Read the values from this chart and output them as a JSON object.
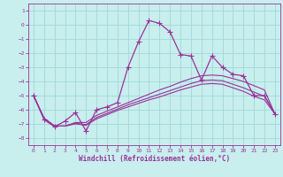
{
  "title": "",
  "xlabel": "Windchill (Refroidissement éolien,°C)",
  "background_color": "#c8eeee",
  "grid_color": "#a0d8d8",
  "line_color": "#993399",
  "xlim": [
    -0.5,
    23.5
  ],
  "ylim": [
    -8.5,
    1.5
  ],
  "xticks": [
    0,
    1,
    2,
    3,
    4,
    5,
    6,
    7,
    8,
    9,
    10,
    11,
    12,
    13,
    14,
    15,
    16,
    17,
    18,
    19,
    20,
    21,
    22,
    23
  ],
  "yticks": [
    -8,
    -7,
    -6,
    -5,
    -4,
    -3,
    -2,
    -1,
    0,
    1
  ],
  "series": [
    {
      "x": [
        0,
        1,
        2,
        3,
        4,
        5,
        6,
        7,
        8,
        9,
        10,
        11,
        12,
        13,
        14,
        15,
        16,
        17,
        18,
        19,
        20,
        21,
        22,
        23
      ],
      "y": [
        -5.0,
        -6.7,
        -7.2,
        -6.8,
        -6.2,
        -7.5,
        -6.0,
        -5.8,
        -5.5,
        -3.0,
        -1.2,
        0.3,
        0.1,
        -0.5,
        -2.1,
        -2.2,
        -3.9,
        -2.2,
        -3.0,
        -3.5,
        -3.6,
        -5.0,
        -5.0,
        -6.3
      ],
      "marker": "+",
      "markersize": 4,
      "linewidth": 0.9
    },
    {
      "x": [
        0,
        1,
        2,
        3,
        4,
        5,
        6,
        7,
        8,
        9,
        10,
        11,
        12,
        13,
        14,
        15,
        16,
        17,
        18,
        19,
        20,
        21,
        22,
        23
      ],
      "y": [
        -5.0,
        -6.6,
        -7.15,
        -7.15,
        -6.9,
        -6.9,
        -6.4,
        -6.1,
        -5.8,
        -5.5,
        -5.2,
        -4.9,
        -4.6,
        -4.35,
        -4.05,
        -3.8,
        -3.6,
        -3.55,
        -3.6,
        -3.8,
        -4.0,
        -4.3,
        -4.6,
        -6.3
      ],
      "marker": null,
      "linewidth": 0.8
    },
    {
      "x": [
        0,
        1,
        2,
        3,
        4,
        5,
        6,
        7,
        8,
        9,
        10,
        11,
        12,
        13,
        14,
        15,
        16,
        17,
        18,
        19,
        20,
        21,
        22,
        23
      ],
      "y": [
        -5.0,
        -6.6,
        -7.15,
        -7.15,
        -6.95,
        -7.05,
        -6.55,
        -6.25,
        -5.95,
        -5.65,
        -5.4,
        -5.15,
        -4.9,
        -4.65,
        -4.4,
        -4.15,
        -3.95,
        -3.9,
        -3.95,
        -4.2,
        -4.45,
        -4.75,
        -5.05,
        -6.3
      ],
      "marker": null,
      "linewidth": 0.8
    },
    {
      "x": [
        0,
        1,
        2,
        3,
        4,
        5,
        6,
        7,
        8,
        9,
        10,
        11,
        12,
        13,
        14,
        15,
        16,
        17,
        18,
        19,
        20,
        21,
        22,
        23
      ],
      "y": [
        -5.0,
        -6.6,
        -7.15,
        -7.15,
        -7.0,
        -7.1,
        -6.65,
        -6.35,
        -6.05,
        -5.8,
        -5.55,
        -5.3,
        -5.1,
        -4.85,
        -4.6,
        -4.4,
        -4.2,
        -4.15,
        -4.2,
        -4.45,
        -4.7,
        -5.05,
        -5.3,
        -6.3
      ],
      "marker": null,
      "linewidth": 0.8
    }
  ]
}
